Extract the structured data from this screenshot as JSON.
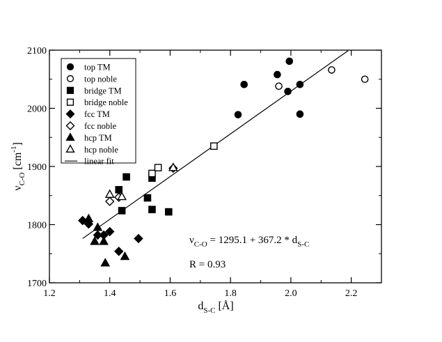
{
  "chart_data": {
    "type": "scatter",
    "title": "",
    "xlabel": {
      "main": "d",
      "sub": "S-C",
      "unit": " [Å]"
    },
    "ylabel": {
      "main": "ν",
      "sub": "C-O",
      "unit_pre": " [cm",
      "unit_sup": "-1",
      "unit_post": "]"
    },
    "xlim": [
      1.2,
      2.3
    ],
    "ylim": [
      1700,
      2100
    ],
    "xticks": [
      1.2,
      1.4,
      1.6,
      1.8,
      2.0,
      2.2
    ],
    "xtick_labels": [
      "1.2",
      "1.4",
      "1.6",
      "1.8",
      "2.0",
      "2.2"
    ],
    "yticks": [
      1700,
      1800,
      1900,
      2000,
      2100
    ],
    "ytick_labels": [
      "1700",
      "1800",
      "1900",
      "2000",
      "2100"
    ],
    "grid": false,
    "legend_position": "top-left",
    "series": [
      {
        "name": "top TM",
        "marker": "circle",
        "filled": true,
        "points": [
          [
            1.825,
            1989
          ],
          [
            1.845,
            2041
          ],
          [
            1.955,
            2058
          ],
          [
            1.99,
            2029
          ],
          [
            1.995,
            2081
          ],
          [
            2.03,
            2041
          ],
          [
            2.03,
            1990
          ]
        ]
      },
      {
        "name": "top noble",
        "marker": "circle",
        "filled": false,
        "points": [
          [
            1.96,
            2038
          ],
          [
            2.135,
            2066
          ],
          [
            2.245,
            2050
          ]
        ]
      },
      {
        "name": "bridge TM",
        "marker": "square",
        "filled": true,
        "points": [
          [
            1.43,
            1860
          ],
          [
            1.44,
            1824
          ],
          [
            1.455,
            1882
          ],
          [
            1.525,
            1846
          ],
          [
            1.54,
            1826
          ],
          [
            1.54,
            1880
          ],
          [
            1.595,
            1822
          ]
        ]
      },
      {
        "name": "bridge noble",
        "marker": "square",
        "filled": false,
        "points": [
          [
            1.54,
            1888
          ],
          [
            1.56,
            1898
          ],
          [
            1.745,
            1935
          ]
        ]
      },
      {
        "name": "fcc TM",
        "marker": "diamond",
        "filled": true,
        "points": [
          [
            1.31,
            1807
          ],
          [
            1.33,
            1801
          ],
          [
            1.36,
            1782
          ],
          [
            1.38,
            1782
          ],
          [
            1.4,
            1788
          ],
          [
            1.43,
            1754
          ],
          [
            1.495,
            1776
          ]
        ]
      },
      {
        "name": "fcc noble",
        "marker": "diamond",
        "filled": false,
        "points": [
          [
            1.4,
            1840
          ],
          [
            1.43,
            1847
          ],
          [
            1.61,
            1897
          ]
        ]
      },
      {
        "name": "hcp TM",
        "marker": "triangle",
        "filled": true,
        "points": [
          [
            1.33,
            1810
          ],
          [
            1.35,
            1771
          ],
          [
            1.36,
            1795
          ],
          [
            1.38,
            1771
          ],
          [
            1.385,
            1734
          ],
          [
            1.45,
            1745
          ]
        ]
      },
      {
        "name": "hcp noble",
        "marker": "triangle",
        "filled": false,
        "points": [
          [
            1.4,
            1852
          ],
          [
            1.44,
            1848
          ],
          [
            1.61,
            1898
          ]
        ]
      }
    ],
    "fit": {
      "name": "linear fit",
      "intercept": 1295.1,
      "slope": 367.2,
      "x_range": [
        1.31,
        2.19
      ]
    },
    "annotations": {
      "equation": {
        "lhs_main": "ν",
        "lhs_sub": "C-O",
        "rhs_main": " = 1295.1 + 367.2 * d",
        "rhs_sub": "S-C"
      },
      "r_value": "R = 0.93"
    }
  }
}
